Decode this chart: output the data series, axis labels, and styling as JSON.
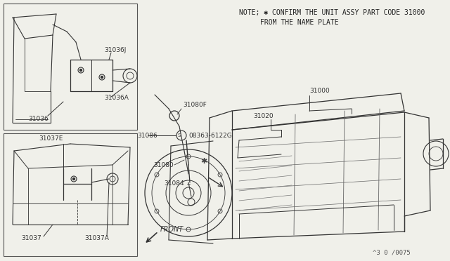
{
  "bg": "#f0f0ea",
  "lc": "#333333",
  "note_text_line1": "NOTE; ✱ CONFIRM THE UNIT ASSY PART CODE 31000",
  "note_text_line2": "FROM THE NAME PLATE",
  "diagram_id": "^3 0 /0075",
  "fig_width": 6.4,
  "fig_height": 3.72,
  "dpi": 100
}
